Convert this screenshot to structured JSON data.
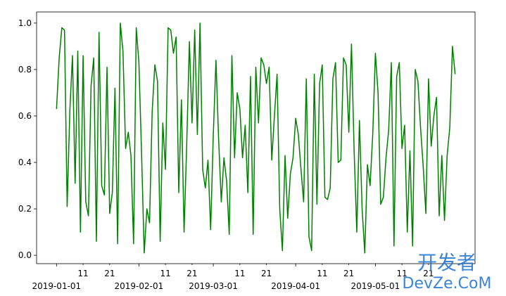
{
  "chart_data": {
    "type": "line",
    "x": [
      "2019-01-01",
      "2019-01-02",
      "2019-01-03",
      "2019-01-04",
      "2019-01-05",
      "2019-01-06",
      "2019-01-07",
      "2019-01-08",
      "2019-01-09",
      "2019-01-10",
      "2019-01-11",
      "2019-01-12",
      "2019-01-13",
      "2019-01-14",
      "2019-01-15",
      "2019-01-16",
      "2019-01-17",
      "2019-01-18",
      "2019-01-19",
      "2019-01-20",
      "2019-01-21",
      "2019-01-22",
      "2019-01-23",
      "2019-01-24",
      "2019-01-25",
      "2019-01-26",
      "2019-01-27",
      "2019-01-28",
      "2019-01-29",
      "2019-01-30",
      "2019-01-31",
      "2019-02-01",
      "2019-02-02",
      "2019-02-03",
      "2019-02-04",
      "2019-02-05",
      "2019-02-06",
      "2019-02-07",
      "2019-02-08",
      "2019-02-09",
      "2019-02-10",
      "2019-02-11",
      "2019-02-12",
      "2019-02-13",
      "2019-02-14",
      "2019-02-15",
      "2019-02-16",
      "2019-02-17",
      "2019-02-18",
      "2019-02-19",
      "2019-02-20",
      "2019-02-21",
      "2019-02-22",
      "2019-02-23",
      "2019-02-24",
      "2019-02-25",
      "2019-02-26",
      "2019-02-27",
      "2019-02-28",
      "2019-03-01",
      "2019-03-02",
      "2019-03-03",
      "2019-03-04",
      "2019-03-05",
      "2019-03-06",
      "2019-03-07",
      "2019-03-08",
      "2019-03-09",
      "2019-03-10",
      "2019-03-11",
      "2019-03-12",
      "2019-03-13",
      "2019-03-14",
      "2019-03-15",
      "2019-03-16",
      "2019-03-17",
      "2019-03-18",
      "2019-03-19",
      "2019-03-20",
      "2019-03-21",
      "2019-03-22",
      "2019-03-23",
      "2019-03-24",
      "2019-03-25",
      "2019-03-26",
      "2019-03-27",
      "2019-03-28",
      "2019-03-29",
      "2019-03-30",
      "2019-03-31",
      "2019-04-01",
      "2019-04-02",
      "2019-04-03",
      "2019-04-04",
      "2019-04-05",
      "2019-04-06",
      "2019-04-07",
      "2019-04-08",
      "2019-04-09",
      "2019-04-10",
      "2019-04-11",
      "2019-04-12",
      "2019-04-13",
      "2019-04-14",
      "2019-04-15",
      "2019-04-16",
      "2019-04-17",
      "2019-04-18",
      "2019-04-19",
      "2019-04-20",
      "2019-04-21",
      "2019-04-22",
      "2019-04-23",
      "2019-04-24",
      "2019-04-25",
      "2019-04-26",
      "2019-04-27",
      "2019-04-28",
      "2019-04-29",
      "2019-04-30",
      "2019-05-01",
      "2019-05-02",
      "2019-05-03",
      "2019-05-04",
      "2019-05-05",
      "2019-05-06",
      "2019-05-07",
      "2019-05-08",
      "2019-05-09",
      "2019-05-10",
      "2019-05-11",
      "2019-05-12",
      "2019-05-13",
      "2019-05-14",
      "2019-05-15",
      "2019-05-16",
      "2019-05-17",
      "2019-05-18",
      "2019-05-19",
      "2019-05-20",
      "2019-05-21",
      "2019-05-22",
      "2019-05-23",
      "2019-05-24",
      "2019-05-25",
      "2019-05-26",
      "2019-05-27",
      "2019-05-28",
      "2019-05-29",
      "2019-05-30",
      "2019-05-31"
    ],
    "series": [
      {
        "color": "#008000",
        "values": [
          0.63,
          0.85,
          0.98,
          0.97,
          0.21,
          0.62,
          0.86,
          0.31,
          0.88,
          0.1,
          0.86,
          0.23,
          0.17,
          0.73,
          0.85,
          0.06,
          0.96,
          0.3,
          0.26,
          0.81,
          0.18,
          0.27,
          0.72,
          0.05,
          1.0,
          0.88,
          0.46,
          0.53,
          0.43,
          0.05,
          0.98,
          0.83,
          0.44,
          0.01,
          0.2,
          0.14,
          0.62,
          0.82,
          0.75,
          0.06,
          0.57,
          0.37,
          0.98,
          0.97,
          0.87,
          0.94,
          0.27,
          0.67,
          0.1,
          0.48,
          0.92,
          0.57,
          0.97,
          0.52,
          1.0,
          0.37,
          0.29,
          0.41,
          0.11,
          0.52,
          0.84,
          0.5,
          0.23,
          0.42,
          0.32,
          0.09,
          0.86,
          0.42,
          0.7,
          0.63,
          0.42,
          0.56,
          0.27,
          0.77,
          0.09,
          0.81,
          0.57,
          0.85,
          0.82,
          0.74,
          0.81,
          0.41,
          0.6,
          0.78,
          0.2,
          0.02,
          0.43,
          0.16,
          0.35,
          0.42,
          0.59,
          0.52,
          0.37,
          0.23,
          0.76,
          0.08,
          0.02,
          0.78,
          0.22,
          0.74,
          0.82,
          0.25,
          0.24,
          0.29,
          0.76,
          0.83,
          0.4,
          0.41,
          0.85,
          0.82,
          0.53,
          0.91,
          0.45,
          0.1,
          0.58,
          0.2,
          0.01,
          0.39,
          0.3,
          0.52,
          0.87,
          0.7,
          0.22,
          0.25,
          0.42,
          0.54,
          0.83,
          0.04,
          0.77,
          0.83,
          0.46,
          0.56,
          0.1,
          0.45,
          0.04,
          0.8,
          0.75,
          0.55,
          0.38,
          0.18,
          0.76,
          0.47,
          0.6,
          0.68,
          0.17,
          0.43,
          0.15,
          0.43,
          0.55,
          0.9,
          0.78
        ]
      }
    ],
    "xlim": [
      "2018-12-24T12:00:00Z",
      "2019-06-07T12:00:00Z"
    ],
    "xticks": [
      "2019-01-01",
      {
        "value": "2019-01-11",
        "label": "11"
      },
      {
        "value": "2019-01-21",
        "label": "21"
      },
      "2019-02-01",
      {
        "value": "2019-02-11",
        "label": "11"
      },
      {
        "value": "2019-02-21",
        "label": "21"
      },
      "2019-03-01",
      {
        "value": "2019-03-11",
        "label": "11"
      },
      {
        "value": "2019-03-21",
        "label": "21"
      },
      "2019-04-01",
      {
        "value": "2019-04-11",
        "label": "11"
      },
      {
        "value": "2019-04-21",
        "label": "21"
      },
      "2019-05-01",
      {
        "value": "2019-05-11",
        "label": "11"
      },
      {
        "value": "2019-05-21",
        "label": "21"
      }
    ],
    "ylim": [
      -0.036,
      1.048
    ],
    "yticks": [
      {
        "value": 0,
        "label": "0.0"
      },
      0.2,
      0.4,
      0.6,
      0.8,
      {
        "value": 1,
        "label": "1.0"
      }
    ],
    "watermark": {
      "top": "开发者",
      "bottom": "DevZe.CoM"
    }
  }
}
